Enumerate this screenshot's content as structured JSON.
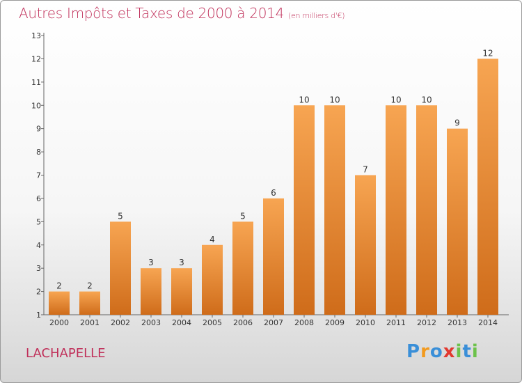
{
  "header": {
    "title": "Autres Impôts et Taxes de 2000 à 2014",
    "unit": "(en milliers d'€)"
  },
  "footer": {
    "commune": "LACHAPELLE",
    "logo": "Proxiti"
  },
  "colors": {
    "title": "#c0305a",
    "bar_top": "#f7a552",
    "bar_bottom": "#cf6c1a"
  },
  "chart_data": {
    "type": "bar",
    "title": "Autres Impôts et Taxes de 2000 à 2014",
    "subtitle": "(en milliers d'€)",
    "xlabel": "",
    "ylabel": "",
    "categories": [
      "2000",
      "2001",
      "2002",
      "2003",
      "2004",
      "2005",
      "2006",
      "2007",
      "2008",
      "2009",
      "2010",
      "2011",
      "2012",
      "2013",
      "2014"
    ],
    "values": [
      2,
      2,
      5,
      3,
      3,
      4,
      5,
      6,
      10,
      10,
      7,
      10,
      10,
      9,
      12
    ],
    "ylim": [
      1,
      13
    ],
    "yticks": [
      1,
      2,
      3,
      4,
      5,
      6,
      7,
      8,
      9,
      10,
      11,
      12,
      13
    ],
    "grid": false,
    "legend": "none"
  }
}
